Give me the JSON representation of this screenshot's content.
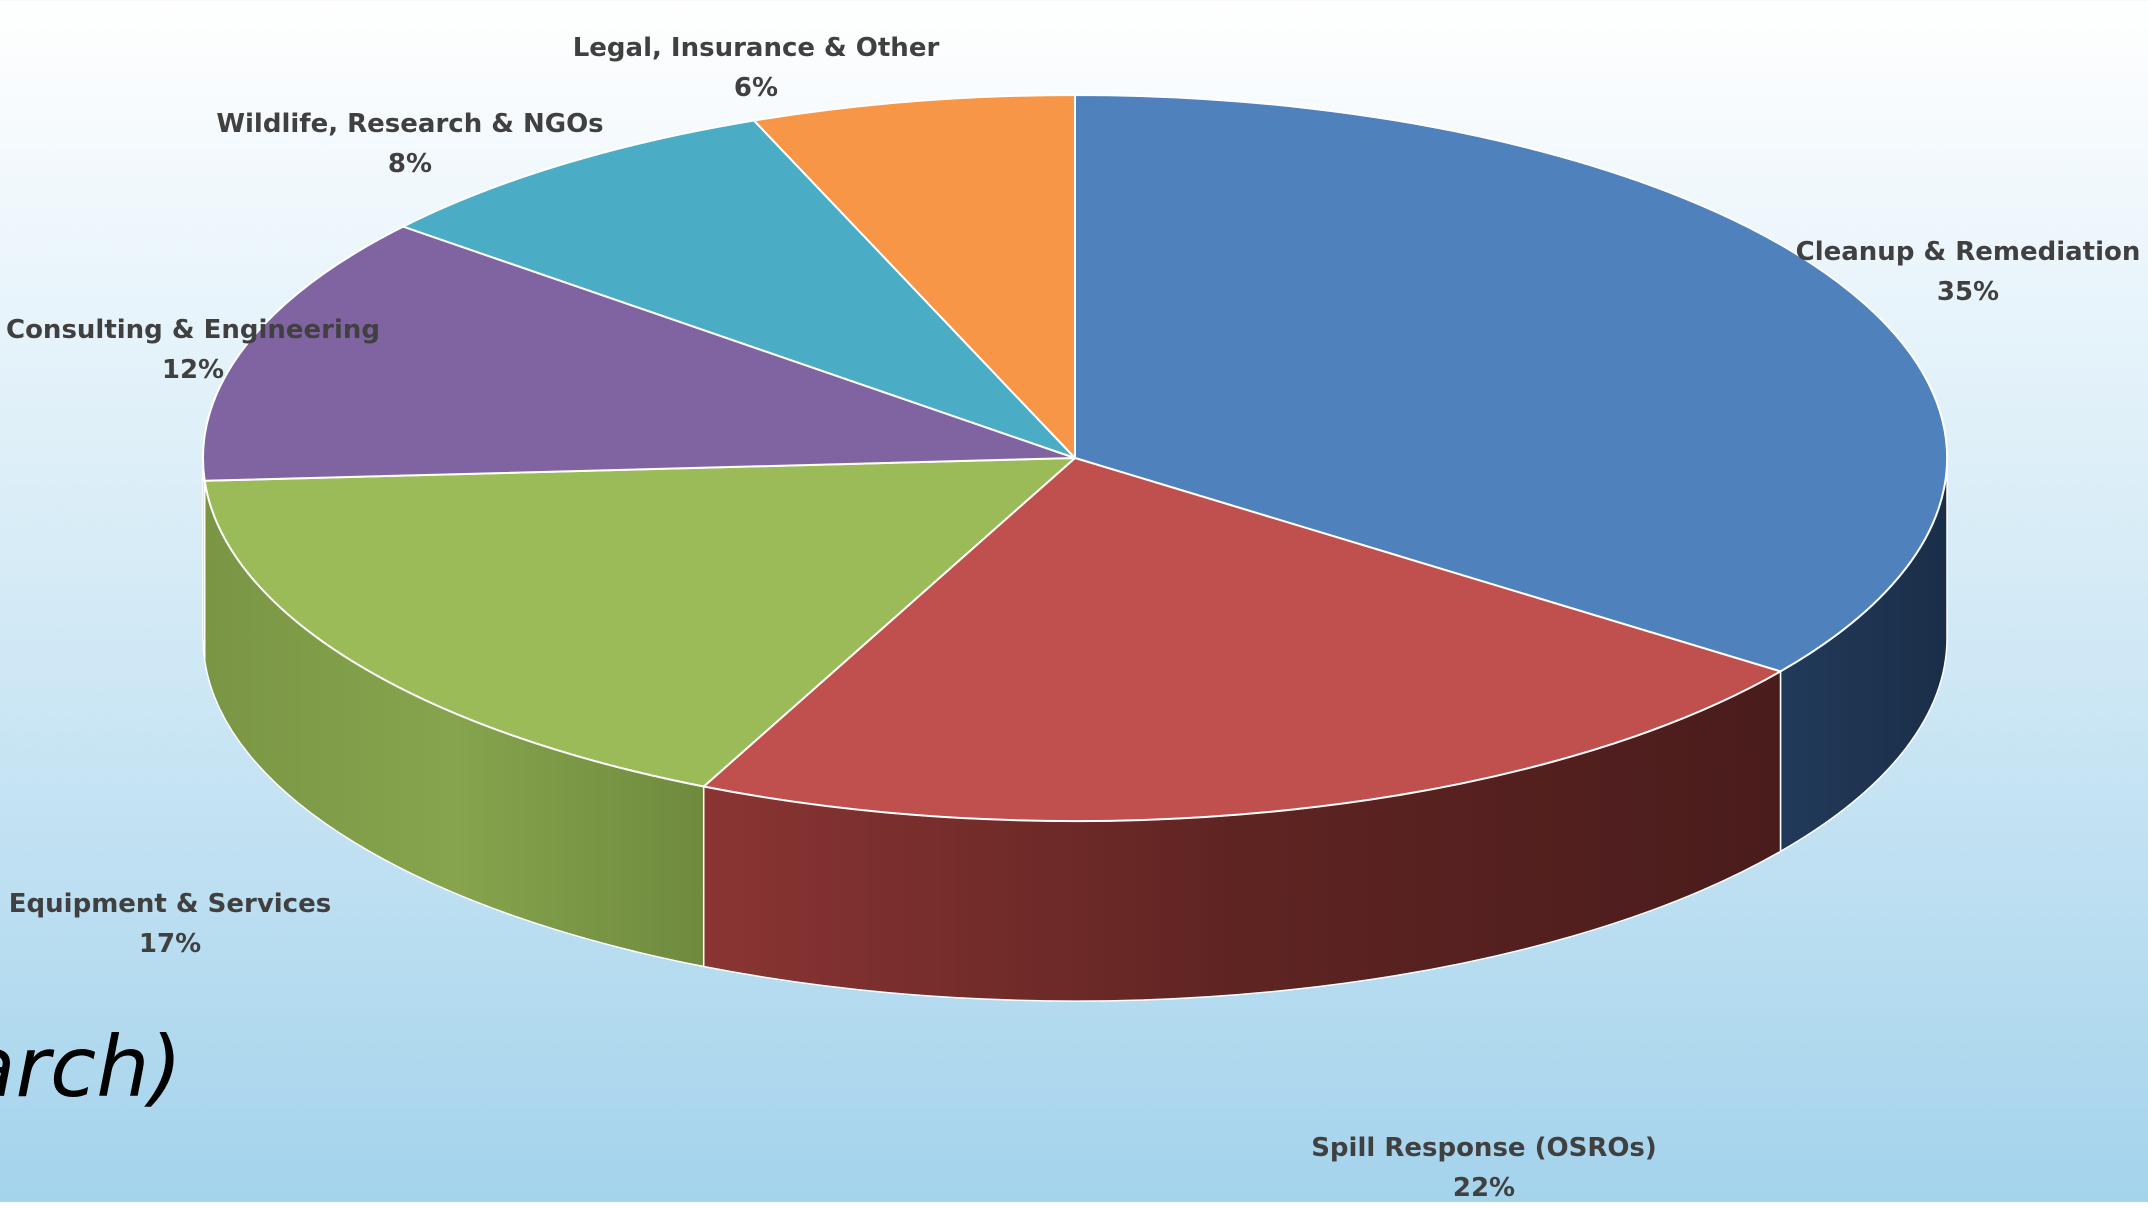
{
  "background_text": "arch)",
  "chart_data": {
    "type": "pie",
    "style": "3d",
    "slices": [
      {
        "label": "Cleanup & Remediation",
        "value": 35,
        "pct_label": "35%",
        "color": "#4F81BD"
      },
      {
        "label": "Spill Response (OSROs)",
        "value": 22,
        "pct_label": "22%",
        "color": "#C0504D"
      },
      {
        "label": "Equipment & Services",
        "value": 17,
        "pct_label": "17%",
        "color": "#9BBB59"
      },
      {
        "label": "Consulting & Engineering",
        "value": 12,
        "pct_label": "12%",
        "color": "#8064A2"
      },
      {
        "label": "Wildlife, Research & NGOs",
        "value": 8,
        "pct_label": "8%",
        "color": "#4BACC6"
      },
      {
        "label": "Legal, Insurance & Other",
        "value": 6,
        "pct_label": "6%",
        "color": "#F79646"
      }
    ]
  }
}
